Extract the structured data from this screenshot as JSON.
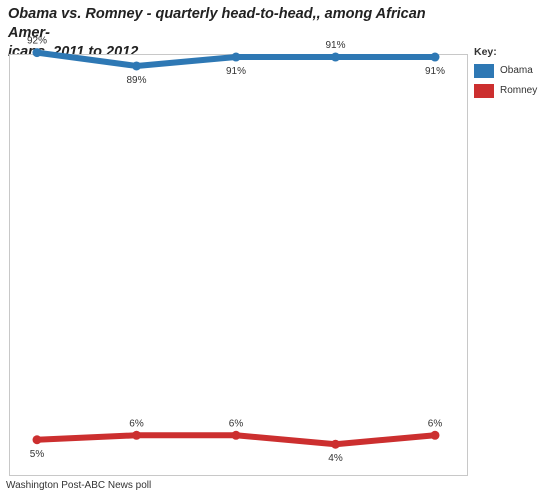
{
  "chart_data": {
    "type": "line",
    "title": "Obama vs. Romney - quarterly head-to-head,, among African Americans, 2011 to 2012",
    "ylim": [
      0,
      100
    ],
    "grid": false,
    "legend": {
      "title": "Key:",
      "placement": "right"
    },
    "series": [
      {
        "name": "Obama",
        "color": "#2e78b4",
        "values": [
          92,
          89,
          91,
          91,
          91
        ],
        "labels": [
          "92%",
          "89%",
          "91%",
          "91%",
          "91%"
        ],
        "label_side": [
          "above",
          "below",
          "below",
          "above",
          "below"
        ]
      },
      {
        "name": "Romney",
        "color": "#cc2f2f",
        "values": [
          5,
          6,
          6,
          4,
          6
        ],
        "labels": [
          "5%",
          "6%",
          "6%",
          "4%",
          "6%"
        ],
        "label_side": [
          "below",
          "above",
          "above",
          "below",
          "above"
        ]
      }
    ]
  },
  "title_lines": [
    "Obama vs. Romney - quarterly head-to-head,, among African Amer-",
    "icans, 2011 to 2012"
  ],
  "legend": {
    "title": "Key:",
    "items": [
      {
        "label": "Obama",
        "color": "#2e78b4"
      },
      {
        "label": "Romney",
        "color": "#cc2f2f"
      }
    ]
  },
  "source": "Washington Post-ABC News poll"
}
